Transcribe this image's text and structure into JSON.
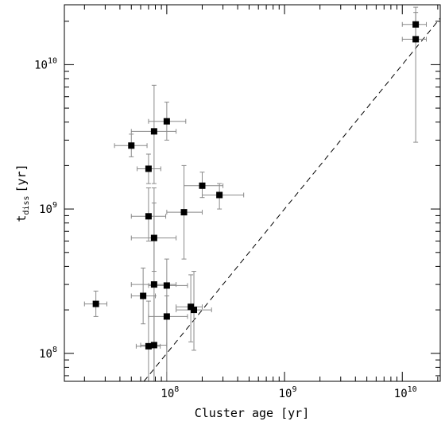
{
  "chart_data": {
    "type": "scatter",
    "title": "",
    "xlabel": "Cluster age [yr]",
    "ylabel_main": "t",
    "ylabel_sub": "diss",
    "ylabel_unit": "[yr]",
    "xscale": "log",
    "yscale": "log",
    "xlim": [
      13500000.0,
      21000000000.0
    ],
    "ylim": [
      64000000.0,
      26000000000.0
    ],
    "x_major_ticks": [
      {
        "value": 100000000.0,
        "base": "10",
        "exp": "8"
      },
      {
        "value": 1000000000.0,
        "base": "10",
        "exp": "9"
      },
      {
        "value": 10000000000.0,
        "base": "10",
        "exp": "10"
      }
    ],
    "y_major_ticks": [
      {
        "value": 100000000.0,
        "base": "10",
        "exp": "8"
      },
      {
        "value": 1000000000.0,
        "base": "10",
        "exp": "9"
      },
      {
        "value": 10000000000.0,
        "base": "10",
        "exp": "10"
      }
    ],
    "reference_line": {
      "style": "dashed",
      "relation": "y = x"
    },
    "points": [
      {
        "x": 25000000.0,
        "y": 220000000.0,
        "xerr": [
          20000000.0,
          31000000.0
        ],
        "yerr": [
          180000000.0,
          270000000.0
        ]
      },
      {
        "x": 50000000.0,
        "y": 2750000000.0,
        "xerr": [
          36000000.0,
          68000000.0
        ],
        "yerr": [
          2300000000.0,
          3300000000.0
        ]
      },
      {
        "x": 63000000.0,
        "y": 250000000.0,
        "xerr": [
          50000000.0,
          80000000.0
        ],
        "yerr": [
          160000000.0,
          390000000.0
        ]
      },
      {
        "x": 70000000.0,
        "y": 1900000000.0,
        "xerr": [
          56000000.0,
          89000000.0
        ],
        "yerr": [
          1500000000.0,
          2400000000.0
        ]
      },
      {
        "x": 70000000.0,
        "y": 890000000.0,
        "xerr": [
          50000000.0,
          98000000.0
        ],
        "yerr": [
          600000000.0,
          1400000000.0
        ]
      },
      {
        "x": 70000000.0,
        "y": 112000000.0,
        "xerr": [
          55000000.0,
          88000000.0
        ],
        "yerr": [
          64000000.0,
          230000000.0
        ]
      },
      {
        "x": 78000000.0,
        "y": 3450000000.0,
        "xerr": [
          50000000.0,
          120000000.0
        ],
        "yerr": [
          1500000000.0,
          7200000000.0
        ]
      },
      {
        "x": 78000000.0,
        "y": 630000000.0,
        "xerr": [
          50000000.0,
          120000000.0
        ],
        "yerr": [
          370000000.0,
          1100000000.0
        ]
      },
      {
        "x": 78000000.0,
        "y": 300000000.0,
        "xerr": [
          50000000.0,
          120000000.0
        ],
        "yerr": [
          64000000.0,
          1400000000.0
        ]
      },
      {
        "x": 78000000.0,
        "y": 114000000.0,
        "xerr": [
          60000000.0,
          100000000.0
        ],
        "yerr": [
          64000000.0,
          250000000.0
        ]
      },
      {
        "x": 100000000.0,
        "y": 4050000000.0,
        "xerr": [
          70000000.0,
          145000000.0
        ],
        "yerr": [
          3000000000.0,
          5500000000.0
        ]
      },
      {
        "x": 100000000.0,
        "y": 295000000.0,
        "xerr": [
          70000000.0,
          150000000.0
        ],
        "yerr": [
          64000000.0,
          450000000.0
        ]
      },
      {
        "x": 100000000.0,
        "y": 180000000.0,
        "xerr": [
          70000000.0,
          150000000.0
        ],
        "yerr": [
          64000000.0,
          250000000.0
        ]
      },
      {
        "x": 140000000.0,
        "y": 950000000.0,
        "xerr": [
          100000000.0,
          200000000.0
        ],
        "yerr": [
          450000000.0,
          2000000000.0
        ]
      },
      {
        "x": 160000000.0,
        "y": 210000000.0,
        "xerr": [
          120000000.0,
          200000000.0
        ],
        "yerr": [
          120000000.0,
          350000000.0
        ]
      },
      {
        "x": 170000000.0,
        "y": 200000000.0,
        "xerr": [
          120000000.0,
          240000000.0
        ],
        "yerr": [
          105000000.0,
          370000000.0
        ]
      },
      {
        "x": 200000000.0,
        "y": 1450000000.0,
        "xerr": [
          140000000.0,
          300000000.0
        ],
        "yerr": [
          1200000000.0,
          1800000000.0
        ]
      },
      {
        "x": 280000000.0,
        "y": 1250000000.0,
        "xerr": [
          200000000.0,
          450000000.0
        ],
        "yerr": [
          1000000000.0,
          1500000000.0
        ]
      },
      {
        "x": 13000000000.0,
        "y": 19000000000.0,
        "xerr": [
          10000000000.0,
          16000000000.0
        ],
        "yerr": [
          15000000000.0,
          23000000000.0
        ]
      },
      {
        "x": 13000000000.0,
        "y": 15000000000.0,
        "xerr": [
          10000000000.0,
          16000000000.0
        ],
        "yerr": [
          2900000000.0,
          25000000000.0
        ]
      }
    ]
  }
}
